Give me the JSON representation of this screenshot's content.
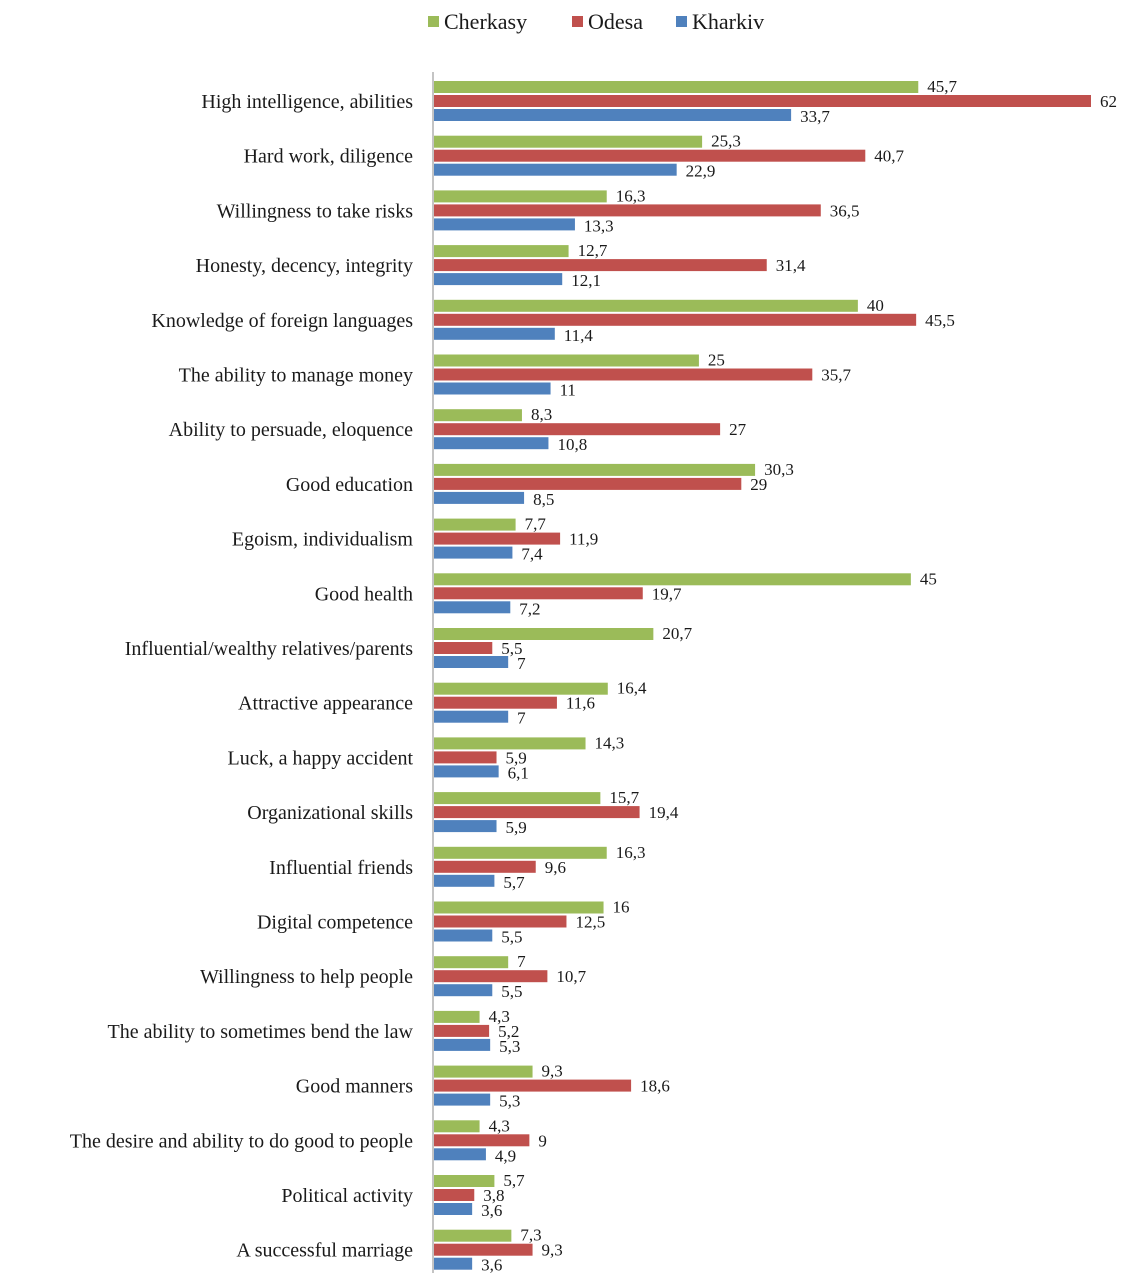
{
  "chart_data": {
    "type": "bar",
    "orientation": "horizontal",
    "legend_position": "top",
    "grid": false,
    "xlim": [
      0,
      62
    ],
    "series": [
      {
        "name": "Cherkasy",
        "color": "#9bbb59",
        "values": [
          45.7,
          25.3,
          16.3,
          12.7,
          40,
          25,
          8.3,
          30.3,
          7.7,
          45,
          20.7,
          16.4,
          14.3,
          15.7,
          16.3,
          16,
          7,
          4.3,
          9.3,
          4.3,
          5.7,
          7.3
        ],
        "labels": [
          "45,7",
          "25,3",
          "16,3",
          "12,7",
          "40",
          "25",
          "8,3",
          "30,3",
          "7,7",
          "45",
          "20,7",
          "16,4",
          "14,3",
          "15,7",
          "16,3",
          "16",
          "7",
          "4,3",
          "9,3",
          "4,3",
          "5,7",
          "7,3"
        ]
      },
      {
        "name": "Odesa",
        "color": "#c0504d",
        "values": [
          62,
          40.7,
          36.5,
          31.4,
          45.5,
          35.7,
          27,
          29,
          11.9,
          19.7,
          5.5,
          11.6,
          5.9,
          19.4,
          9.6,
          12.5,
          10.7,
          5.2,
          18.6,
          9,
          3.8,
          9.3
        ],
        "labels": [
          "62",
          "40,7",
          "36,5",
          "31,4",
          "45,5",
          "35,7",
          "27",
          "29",
          "11,9",
          "19,7",
          "5,5",
          "11,6",
          "5,9",
          "19,4",
          "9,6",
          "12,5",
          "10,7",
          "5,2",
          "18,6",
          "9",
          "3,8",
          "9,3"
        ]
      },
      {
        "name": "Kharkiv",
        "color": "#4f81bd",
        "values": [
          33.7,
          22.9,
          13.3,
          12.1,
          11.4,
          11,
          10.8,
          8.5,
          7.4,
          7.2,
          7,
          7,
          6.1,
          5.9,
          5.7,
          5.5,
          5.5,
          5.3,
          5.3,
          4.9,
          3.6,
          3.6
        ],
        "labels": [
          "33,7",
          "22,9",
          "13,3",
          "12,1",
          "11,4",
          "11",
          "10,8",
          "8,5",
          "7,4",
          "7,2",
          "7",
          "7",
          "6,1",
          "5,9",
          "5,7",
          "5,5",
          "5,5",
          "5,3",
          "5,3",
          "4,9",
          "3,6",
          "3,6"
        ]
      }
    ],
    "categories": [
      "High intelligence, abilities",
      "Hard work, diligence",
      "Willingness to take risks",
      "Honesty, decency, integrity",
      "Knowledge of foreign languages",
      "The ability to manage money",
      "Ability to persuade, eloquence",
      "Good education",
      "Egoism, individualism",
      "Good health",
      "Influential/wealthy relatives/parents",
      "Attractive appearance",
      "Luck, a happy accident",
      "Organizational skills",
      "Influential friends",
      "Digital competence",
      "Willingness to help people",
      "The ability to sometimes bend the law",
      "Good manners",
      "The desire and ability to do good to people",
      "Political activity",
      "A successful marriage"
    ]
  }
}
